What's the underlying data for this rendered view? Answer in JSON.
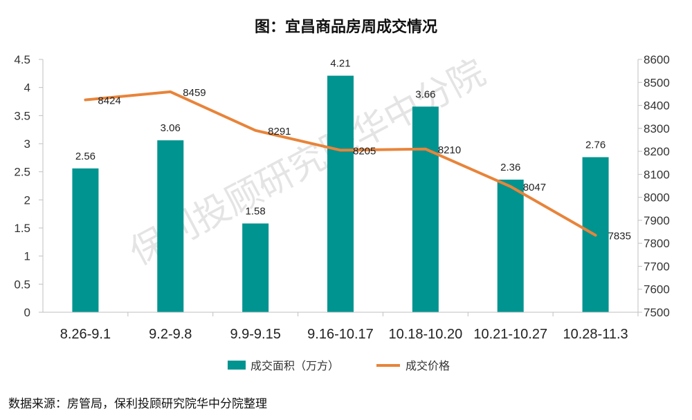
{
  "chart_data": {
    "type": "bar",
    "title": "图：宜昌商品房周成交情况",
    "categories": [
      "8.26-9.1",
      "9.2-9.8",
      "9.9-9.15",
      "9.16-10.17",
      "10.18-10.20",
      "10.21-10.27",
      "10.28-11.3"
    ],
    "series": [
      {
        "name": "成交面积（万方）",
        "type": "bar",
        "axis": "left",
        "color": "#009490",
        "values": [
          2.56,
          3.06,
          1.58,
          4.21,
          3.66,
          2.36,
          2.76
        ]
      },
      {
        "name": "成交价格",
        "type": "line",
        "axis": "right",
        "color": "#E8843A",
        "values": [
          8424,
          8459,
          8291,
          8205,
          8210,
          8047,
          7835
        ]
      }
    ],
    "left_axis": {
      "ylim": [
        0,
        4.5
      ],
      "ticks": [
        "0",
        "0.5",
        "1",
        "1.5",
        "2",
        "2.5",
        "3",
        "3.5",
        "4",
        "4.5"
      ]
    },
    "right_axis": {
      "ylim": [
        7500,
        8600
      ],
      "ticks": [
        "7500",
        "7600",
        "7700",
        "7800",
        "7900",
        "8000",
        "8100",
        "8200",
        "8300",
        "8400",
        "8500",
        "8600"
      ]
    },
    "legend_position": "bottom",
    "grid": false
  },
  "watermark": "保利投顾研究院华中分院",
  "source_note": "数据来源：房管局，保利投顾研究院华中分院整理"
}
